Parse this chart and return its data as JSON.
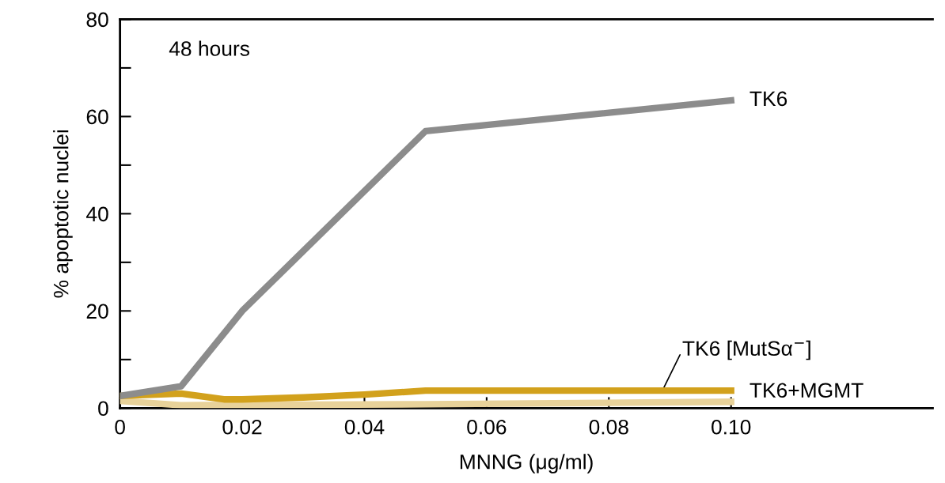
{
  "chart_data": {
    "type": "line",
    "xlabel": "MNNG (μg/ml)",
    "ylabel": "% apoptotic nuclei",
    "annotations": [
      "48 hours"
    ],
    "xlim": [
      0,
      0.133
    ],
    "xticks": [
      {
        "value": 0,
        "label": "0"
      },
      0.02,
      0.04,
      0.06,
      0.08,
      {
        "value": 0.1,
        "label": "0.10"
      }
    ],
    "ylim": [
      0,
      80
    ],
    "yticks": [
      0,
      {
        "value": 10,
        "label": null
      },
      20,
      {
        "value": 30,
        "label": null
      },
      40,
      {
        "value": 50,
        "label": null
      },
      60,
      {
        "value": 70,
        "label": null
      },
      80
    ],
    "grid": false,
    "legend": false,
    "marker": "none",
    "line_style": "solid",
    "series": [
      {
        "name": "TK6",
        "color": "#8c8c8c",
        "x": [
          0,
          0.01,
          0.02,
          0.05,
          0.1
        ],
        "values": [
          2.5,
          4.5,
          20,
          57,
          63.3
        ]
      },
      {
        "name": "TK6 [MutSα$^{−}$]",
        "color": "#d2a11c",
        "x": [
          0,
          0.01,
          0.017,
          0.02,
          0.03,
          0.04,
          0.05,
          0.1
        ],
        "values": [
          2.5,
          3,
          1.8,
          1.8,
          2.2,
          2.8,
          3.6,
          3.6
        ]
      },
      {
        "name": "TK6+MGMT",
        "color": "#e8d29a",
        "x": [
          0,
          0.01,
          0.05,
          0.1
        ],
        "values": [
          1.5,
          0.6,
          0.8,
          1.3
        ]
      }
    ]
  }
}
